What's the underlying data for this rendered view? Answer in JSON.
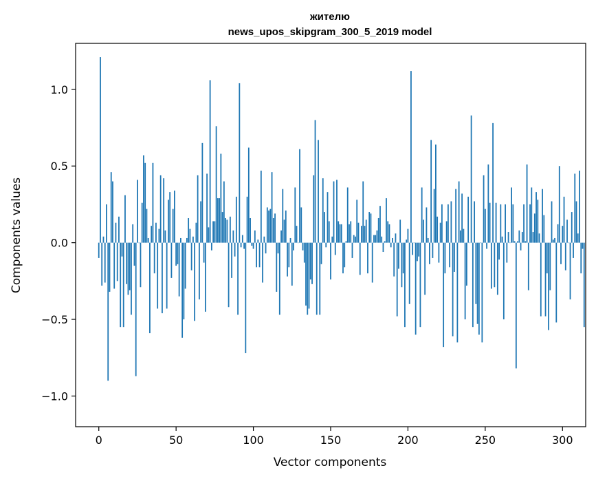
{
  "chart_data": {
    "type": "bar",
    "title_lines": [
      "жителю",
      "news_upos_skipgram_300_5_2019 model"
    ],
    "xlabel": "Vector components",
    "ylabel": "Components values",
    "xlim": [
      -15,
      315
    ],
    "ylim": [
      -1.2,
      1.3
    ],
    "x_ticks": [
      {
        "value": 0,
        "label": "0"
      },
      {
        "value": 50,
        "label": "50"
      },
      {
        "value": 100,
        "label": "100"
      },
      {
        "value": 150,
        "label": "150"
      },
      {
        "value": 200,
        "label": "200"
      },
      {
        "value": 250,
        "label": "250"
      },
      {
        "value": 300,
        "label": "300"
      }
    ],
    "y_ticks": [
      {
        "value": 1.0,
        "label": "1.0"
      },
      {
        "value": 0.5,
        "label": "0.5"
      },
      {
        "value": 0.0,
        "label": "0.0"
      },
      {
        "value": -0.5,
        "label": "−0.5"
      },
      {
        "value": -1.0,
        "label": "−1.0"
      }
    ],
    "grid": false,
    "series": [
      {
        "name": "жителю",
        "color": "#1f77b4",
        "x_start": 0,
        "values": [
          -0.1,
          1.21,
          -0.28,
          0.04,
          -0.26,
          0.25,
          -0.9,
          -0.32,
          0.46,
          0.4,
          -0.3,
          0.13,
          -0.25,
          0.17,
          -0.55,
          -0.09,
          -0.55,
          0.31,
          -0.27,
          -0.34,
          -0.31,
          -0.47,
          0.12,
          -0.15,
          -0.87,
          0.41,
          0.0,
          -0.29,
          0.26,
          0.57,
          0.52,
          0.22,
          0.03,
          -0.59,
          0.11,
          0.52,
          -0.2,
          0.13,
          -0.43,
          0.09,
          0.44,
          -0.46,
          0.42,
          0.08,
          -0.43,
          0.28,
          0.33,
          -0.23,
          0.22,
          0.34,
          -0.15,
          -0.14,
          -0.35,
          0.03,
          -0.62,
          -0.5,
          -0.3,
          0.03,
          0.16,
          0.09,
          -0.18,
          0.04,
          -0.51,
          0.13,
          0.44,
          -0.37,
          0.27,
          0.65,
          -0.13,
          -0.45,
          0.45,
          0.1,
          1.06,
          -0.05,
          0.14,
          0.14,
          0.76,
          0.29,
          0.29,
          0.58,
          0.2,
          0.4,
          0.16,
          0.15,
          -0.42,
          0.17,
          -0.23,
          0.08,
          -0.09,
          0.3,
          -0.47,
          1.04,
          -0.03,
          0.05,
          -0.04,
          -0.72,
          0.3,
          0.62,
          0.16,
          -0.02,
          -0.04,
          0.08,
          -0.16,
          0.02,
          -0.16,
          0.47,
          -0.26,
          0.04,
          -0.07,
          0.23,
          0.21,
          0.22,
          0.46,
          0.16,
          0.19,
          -0.32,
          -0.07,
          -0.47,
          0.08,
          0.35,
          0.15,
          0.21,
          -0.22,
          -0.16,
          0.03,
          -0.28,
          -0.05,
          0.36,
          0.11,
          0.0,
          0.61,
          0.23,
          -0.05,
          -0.13,
          -0.41,
          -0.47,
          -0.43,
          -0.24,
          -0.27,
          0.44,
          0.8,
          -0.47,
          0.67,
          -0.47,
          -0.14,
          0.42,
          0.2,
          -0.03,
          0.33,
          0.14,
          -0.24,
          0.04,
          0.4,
          -0.08,
          0.41,
          0.14,
          0.12,
          0.12,
          -0.2,
          -0.16,
          0.01,
          0.36,
          0.12,
          0.14,
          -0.1,
          0.05,
          0.04,
          0.28,
          0.13,
          -0.21,
          0.11,
          0.4,
          0.11,
          0.15,
          -0.2,
          0.2,
          0.19,
          -0.26,
          0.05,
          0.05,
          0.08,
          0.16,
          0.24,
          0.04,
          -0.06,
          0.01,
          0.29,
          0.14,
          0.12,
          -0.03,
          0.03,
          -0.22,
          0.06,
          -0.48,
          -0.17,
          0.15,
          -0.29,
          -0.2,
          -0.55,
          0.02,
          0.09,
          -0.4,
          1.12,
          -0.08,
          0.0,
          -0.6,
          -0.12,
          -0.09,
          -0.55,
          0.36,
          0.15,
          -0.34,
          0.23,
          0.03,
          -0.14,
          0.67,
          -0.1,
          0.35,
          0.64,
          0.17,
          -0.13,
          0.13,
          0.25,
          -0.68,
          -0.2,
          0.14,
          0.25,
          -0.16,
          0.27,
          -0.61,
          -0.19,
          0.35,
          -0.65,
          0.4,
          0.08,
          0.32,
          0.09,
          -0.5,
          -0.28,
          0.3,
          0.0,
          0.83,
          -0.55,
          0.27,
          -0.4,
          -0.53,
          -0.6,
          0.0,
          -0.65,
          0.44,
          0.22,
          -0.04,
          0.51,
          0.26,
          -0.3,
          0.78,
          -0.29,
          0.26,
          -0.34,
          -0.11,
          0.25,
          0.04,
          -0.5,
          0.25,
          -0.13,
          0.07,
          0.0,
          0.36,
          0.25,
          0.01,
          -0.82,
          0.01,
          0.08,
          -0.05,
          0.07,
          0.25,
          0.01,
          0.51,
          -0.31,
          0.25,
          0.36,
          0.07,
          0.19,
          0.33,
          0.28,
          0.06,
          -0.48,
          0.35,
          0.18,
          -0.48,
          -0.2,
          -0.57,
          -0.31,
          0.27,
          0.02,
          0.03,
          -0.52,
          0.12,
          0.5,
          -0.14,
          0.11,
          0.3,
          -0.18,
          0.15,
          0.0,
          -0.37,
          0.2,
          -0.1,
          0.45,
          0.27,
          0.06,
          0.47,
          -0.2,
          -0.04,
          -0.55
        ]
      }
    ]
  }
}
